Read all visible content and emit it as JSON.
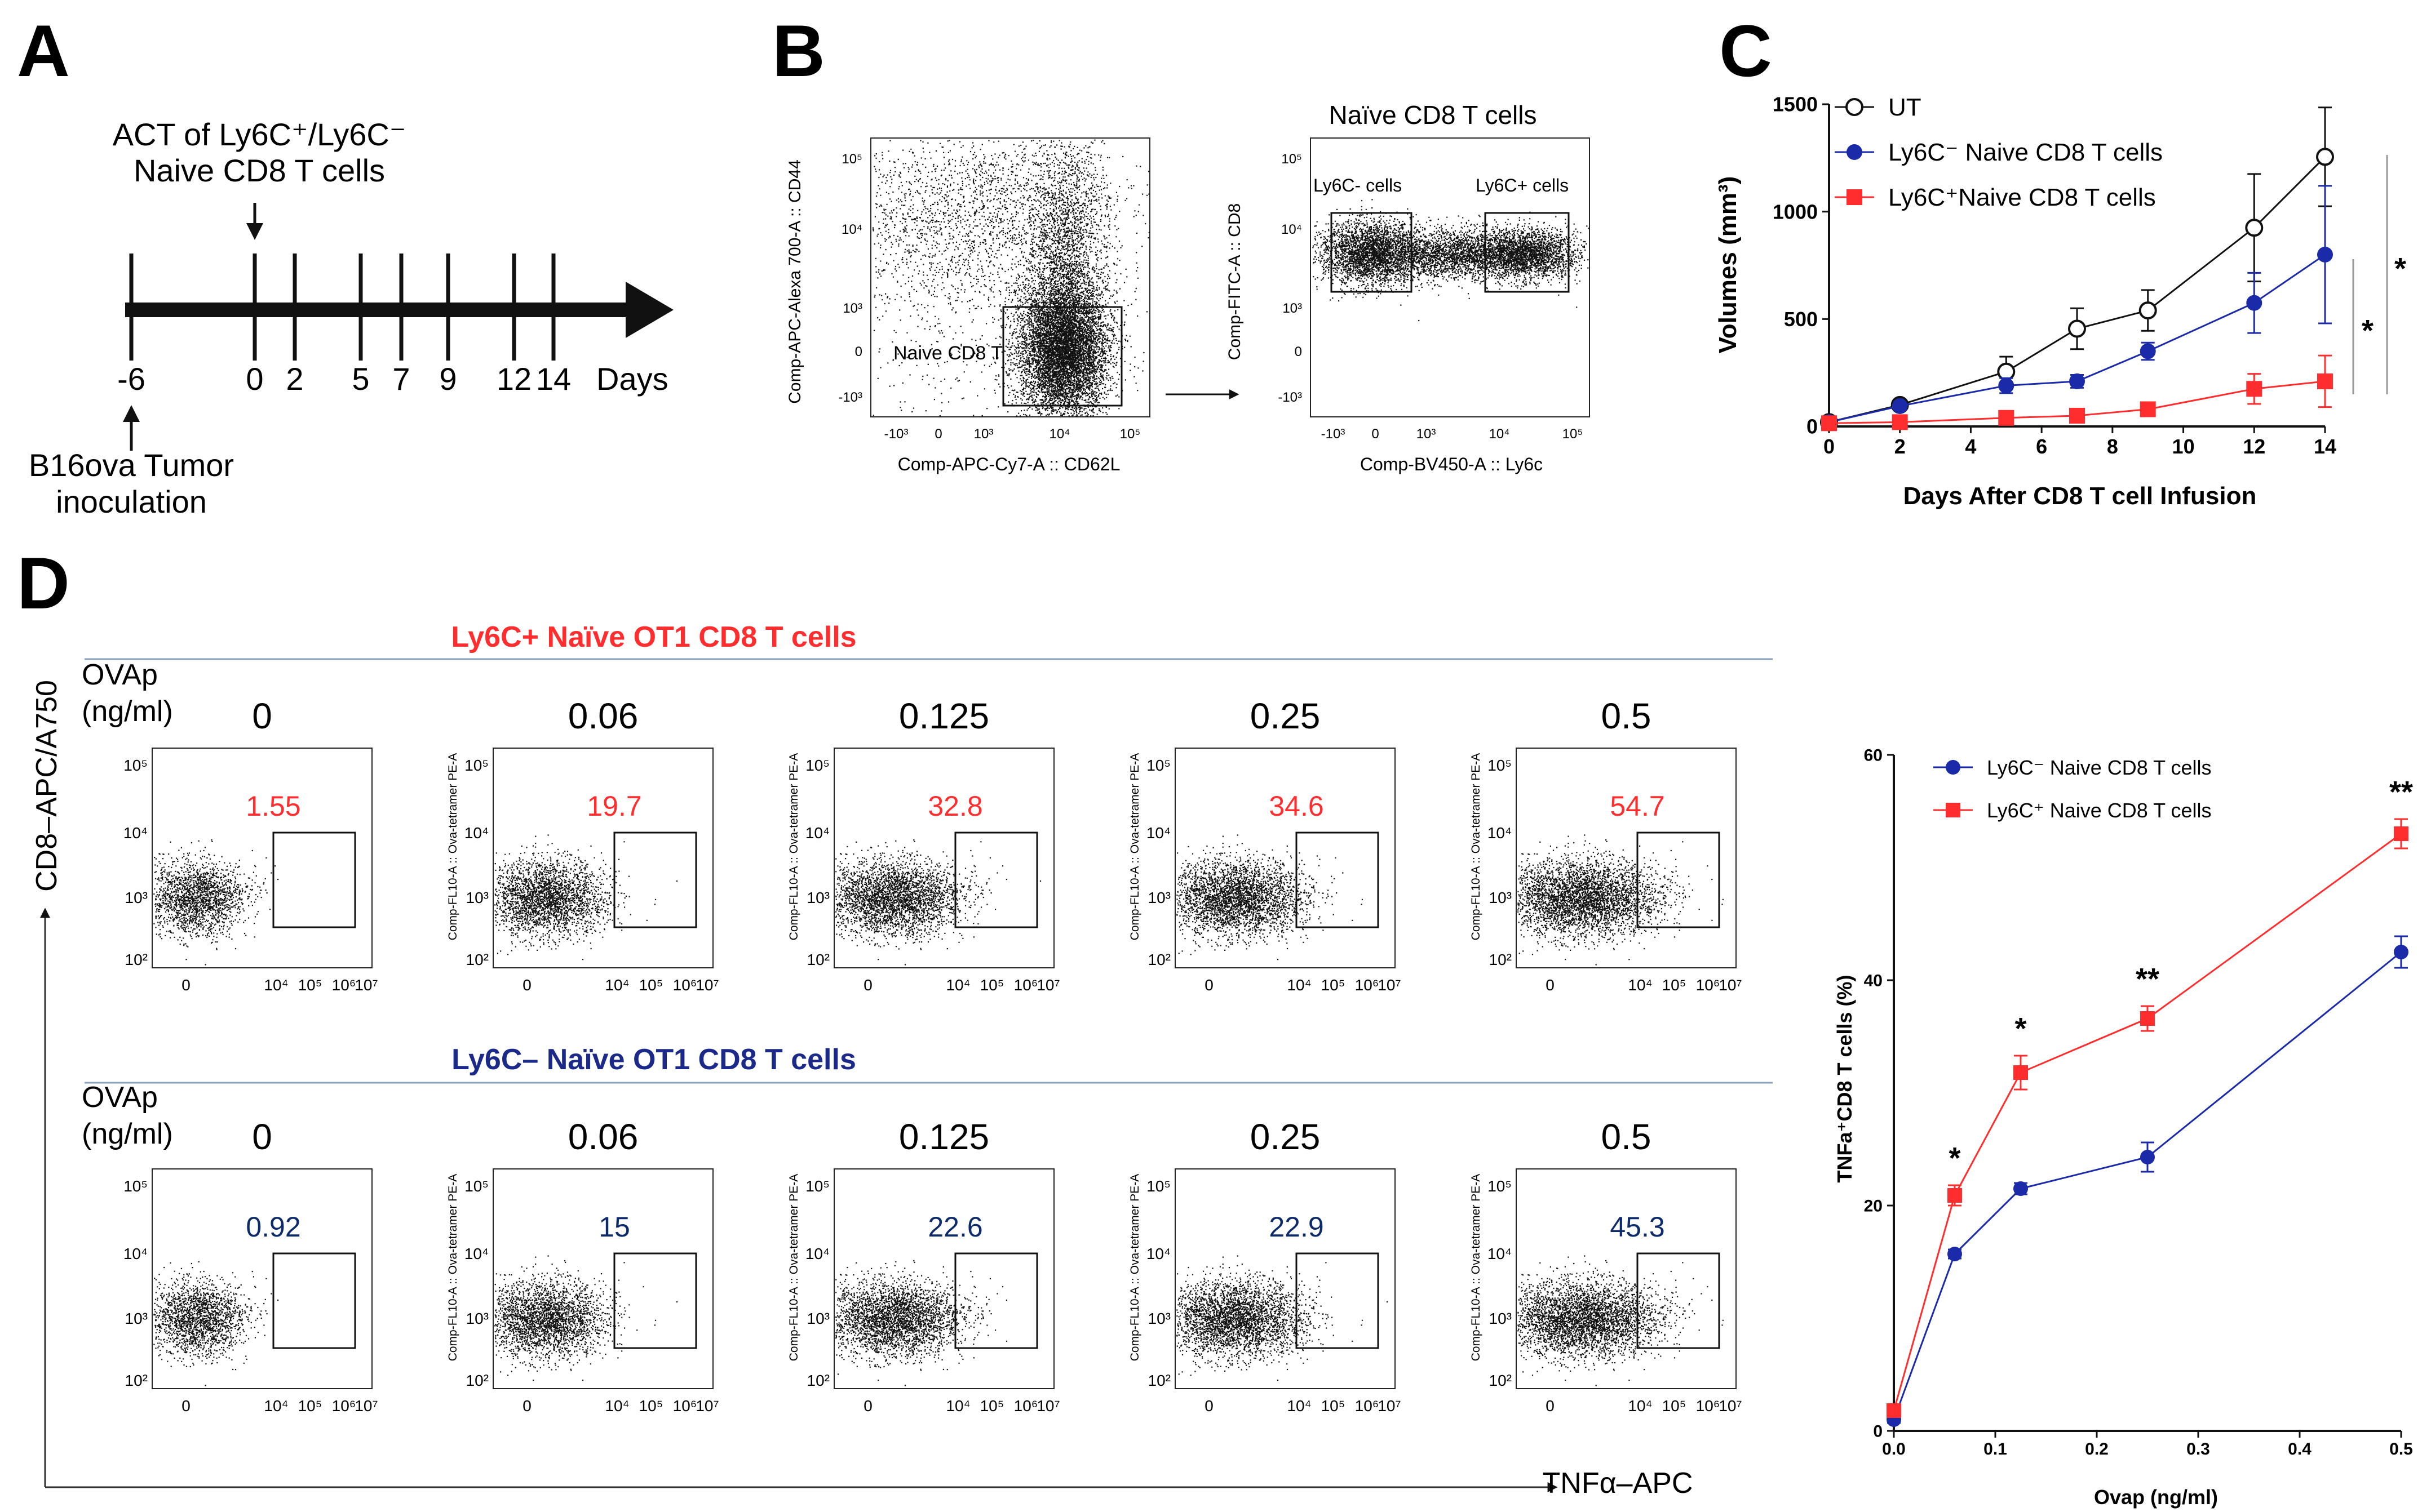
{
  "colors": {
    "red": "#ff2d2d",
    "blue": "#1a2aa8",
    "darkblue": "#1b2a8a",
    "navy": "#0d2a6b",
    "black": "#111111"
  },
  "panelA": {
    "letter": "A",
    "act_line1": "ACT of Ly6C⁺/Ly6C⁻",
    "act_line2": "Naive CD8 T cells",
    "ticks": [
      "-6",
      "0",
      "2",
      "5",
      "7",
      "9",
      "12",
      "14"
    ],
    "days_label": "Days",
    "inoc_line1": "B16ova Tumor",
    "inoc_line2": "inoculation"
  },
  "panelB": {
    "letter": "B",
    "plot1": {
      "ylabel": "Comp-APC-Alexa 700-A :: CD44",
      "xlabel": "Comp-APC-Cy7-A :: CD62L",
      "gate": "Naive CD8 T",
      "yticks": [
        "10⁵",
        "10⁴",
        "10³",
        "0",
        "-10³"
      ],
      "xticks": [
        "-10³",
        "0",
        "10³",
        "10⁴",
        "10⁵"
      ]
    },
    "plot2": {
      "title": "Naïve CD8 T cells",
      "ylabel": "Comp-FITC-A :: CD8",
      "xlabel": "Comp-BV450-A :: Ly6c",
      "gate_left": "Ly6C- cells",
      "gate_right": "Ly6C+ cells",
      "yticks": [
        "10⁵",
        "10⁴",
        "10³",
        "0",
        "-10³"
      ],
      "xticks": [
        "-10³",
        "0",
        "10³",
        "10⁴",
        "10⁵"
      ]
    }
  },
  "panelD": {
    "letter": "D",
    "top_title": "Ly6C+ Naïve OT1 CD8 T cells",
    "bottom_title": "Ly6C– Naïve OT1 CD8 T cells",
    "ovap_line1": "OVAp",
    "ovap_line2": "(ng/ml)",
    "y_axis": "CD8–APC/A750",
    "x_axis": "TNFα–APC",
    "facs_ylabel": "Comp-FL10-A :: Ova-tetramer PE-A",
    "concentrations": [
      "0",
      "0.06",
      "0.125",
      "0.25",
      "0.5"
    ],
    "top_values": [
      "1.55",
      "19.7",
      "32.8",
      "34.6",
      "54.7"
    ],
    "bottom_values": [
      "0.92",
      "15",
      "22.6",
      "22.9",
      "45.3"
    ],
    "yticks": [
      "10⁵",
      "10⁴",
      "10³",
      "10²"
    ],
    "xticks": [
      "0",
      "10⁴",
      "10⁵",
      "10⁶",
      "10⁷"
    ]
  },
  "chart_data": [
    {
      "type": "line",
      "panel": "C",
      "letter": "C",
      "title": "",
      "xlabel": "Days After CD8 T cell Infusion",
      "ylabel": "Volumes (mm³)",
      "x": [
        0,
        2,
        5,
        7,
        9,
        12,
        14
      ],
      "xlim": [
        0,
        14
      ],
      "ylim": [
        0,
        1500
      ],
      "xticks": [
        0,
        2,
        4,
        6,
        8,
        10,
        12,
        14
      ],
      "yticks": [
        0,
        500,
        1000,
        1500
      ],
      "series": [
        {
          "name": "UT",
          "values": [
            20,
            100,
            255,
            455,
            540,
            925,
            1255
          ],
          "errors": [
            10,
            15,
            70,
            95,
            95,
            250,
            230
          ],
          "marker": "open-circle",
          "color": "#111111"
        },
        {
          "name": "Ly6C⁻ Naive CD8 T cells",
          "values": [
            20,
            95,
            190,
            210,
            350,
            575,
            800
          ],
          "errors": [
            10,
            12,
            35,
            30,
            40,
            140,
            320
          ],
          "marker": "circle",
          "color": "#1a2aa8"
        },
        {
          "name": "Ly6C⁺Naive CD8 T cells",
          "values": [
            15,
            20,
            40,
            50,
            80,
            175,
            210
          ],
          "errors": [
            5,
            5,
            10,
            15,
            25,
            70,
            120
          ],
          "marker": "square",
          "color": "#ff2d2d"
        }
      ],
      "significance": [
        "*",
        "*"
      ],
      "legend": "top-left"
    },
    {
      "type": "line",
      "panel": "D-right",
      "title": "",
      "xlabel": "Ovap (ng/ml)",
      "ylabel": "TNFa⁺CD8 T cells (%)",
      "x": [
        0,
        0.06,
        0.125,
        0.25,
        0.5
      ],
      "xlim": [
        0,
        0.5
      ],
      "ylim": [
        0,
        60
      ],
      "xticks": [
        0.0,
        0.1,
        0.2,
        0.3,
        0.4,
        0.5
      ],
      "xtick_labels": [
        "0.0",
        "0.1",
        "0.2",
        "0.3",
        "0.4",
        "0.5"
      ],
      "yticks": [
        0,
        20,
        40,
        60
      ],
      "series": [
        {
          "name": "Ly6C⁻ Naive CD8 T cells",
          "values": [
            1,
            15.7,
            21.5,
            24.3,
            42.5
          ],
          "errors": [
            0.3,
            0.4,
            0.5,
            1.3,
            1.4
          ],
          "marker": "circle",
          "color": "#1a2aa8"
        },
        {
          "name": "Ly6C⁺ Naive CD8 T cells",
          "values": [
            1.8,
            20.9,
            31.8,
            36.6,
            53
          ],
          "errors": [
            0.3,
            0.9,
            1.5,
            1.1,
            1.3
          ],
          "marker": "square",
          "color": "#ff2d2d"
        }
      ],
      "significance": [
        "*",
        "*",
        "**",
        "**"
      ],
      "legend": "top-left"
    }
  ]
}
